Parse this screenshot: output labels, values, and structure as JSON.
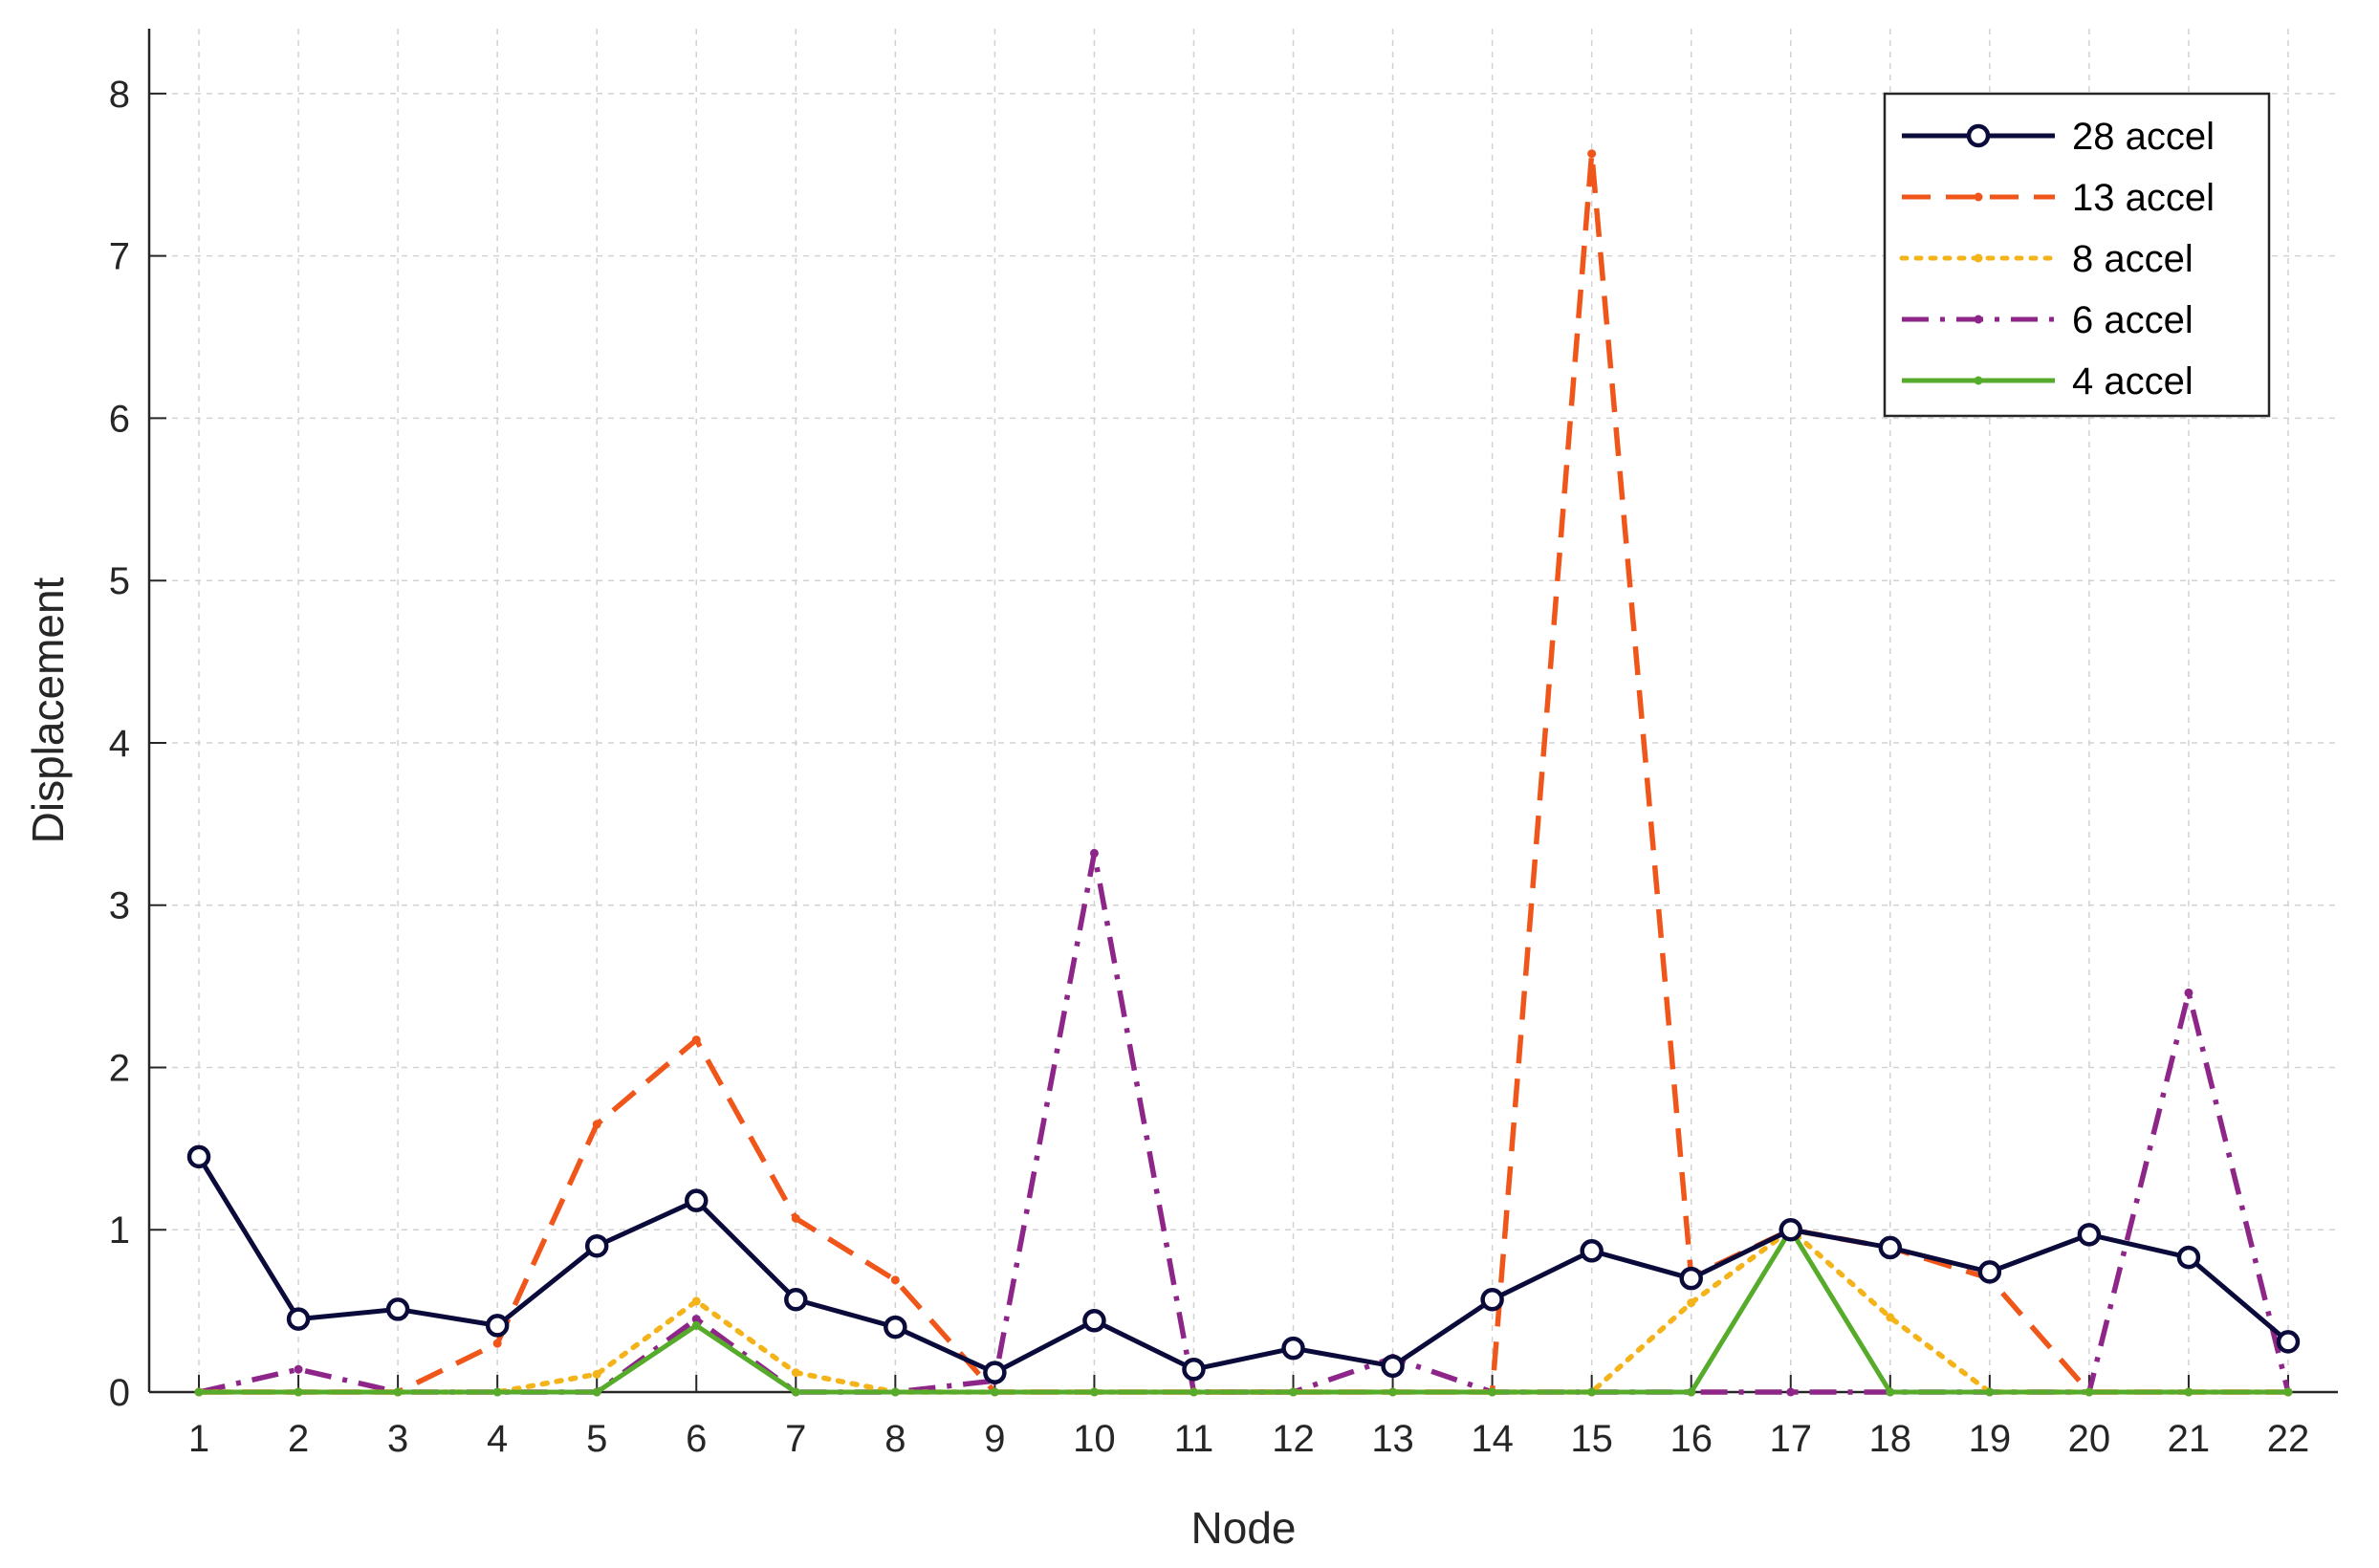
{
  "chart_data": {
    "type": "line",
    "xlabel": "Node",
    "ylabel": "Displacement",
    "xlim": [
      0.5,
      22.5
    ],
    "ylim": [
      0,
      8.4
    ],
    "x": [
      1,
      2,
      3,
      4,
      5,
      6,
      7,
      8,
      9,
      10,
      11,
      12,
      13,
      14,
      15,
      16,
      17,
      18,
      19,
      20,
      21,
      22
    ],
    "x_ticks": [
      1,
      2,
      3,
      4,
      5,
      6,
      7,
      8,
      9,
      10,
      11,
      12,
      13,
      14,
      15,
      16,
      17,
      18,
      19,
      20,
      21,
      22
    ],
    "y_ticks": [
      0,
      1,
      2,
      3,
      4,
      5,
      6,
      7,
      8
    ],
    "grid": true,
    "legend_position": "top-right",
    "series": [
      {
        "name": "28 accel",
        "color": "#0b0b3b",
        "line_style": "solid",
        "marker": "circle",
        "values": [
          1.45,
          0.45,
          0.51,
          0.41,
          0.9,
          1.18,
          0.57,
          0.4,
          0.12,
          0.44,
          0.14,
          0.27,
          0.16,
          0.57,
          0.87,
          0.7,
          1.0,
          0.89,
          0.74,
          0.97,
          0.83,
          0.31
        ]
      },
      {
        "name": "13 accel",
        "color": "#f0561a",
        "line_style": "dashed",
        "marker": "dot",
        "values": [
          0,
          0,
          0,
          0.3,
          1.65,
          2.17,
          1.07,
          0.69,
          0,
          0,
          0,
          0,
          0,
          0,
          7.63,
          0.71,
          1.0,
          0.89,
          0.7,
          0,
          0,
          0
        ]
      },
      {
        "name": "8 accel",
        "color": "#f5b31a",
        "line_style": "dotted",
        "marker": "dot",
        "values": [
          0,
          0,
          0,
          0,
          0.11,
          0.56,
          0.12,
          0,
          0,
          0,
          0,
          0,
          0,
          0,
          0,
          0.55,
          1.0,
          0.46,
          0,
          0,
          0,
          0
        ]
      },
      {
        "name": "6 accel",
        "color": "#8e268a",
        "line_style": "dashdot",
        "marker": "dot",
        "values": [
          0,
          0.14,
          0,
          0,
          0,
          0.45,
          0,
          0,
          0.07,
          3.32,
          0,
          0,
          0.21,
          0,
          0,
          0,
          0,
          0,
          0,
          0,
          2.46,
          0
        ]
      },
      {
        "name": "4 accel",
        "color": "#56ac2a",
        "line_style": "solid",
        "marker": "dot",
        "values": [
          0,
          0,
          0,
          0,
          0,
          0.41,
          0,
          0,
          0,
          0,
          0,
          0,
          0,
          0,
          0,
          0,
          1.0,
          0,
          0,
          0,
          0,
          0
        ]
      }
    ]
  }
}
